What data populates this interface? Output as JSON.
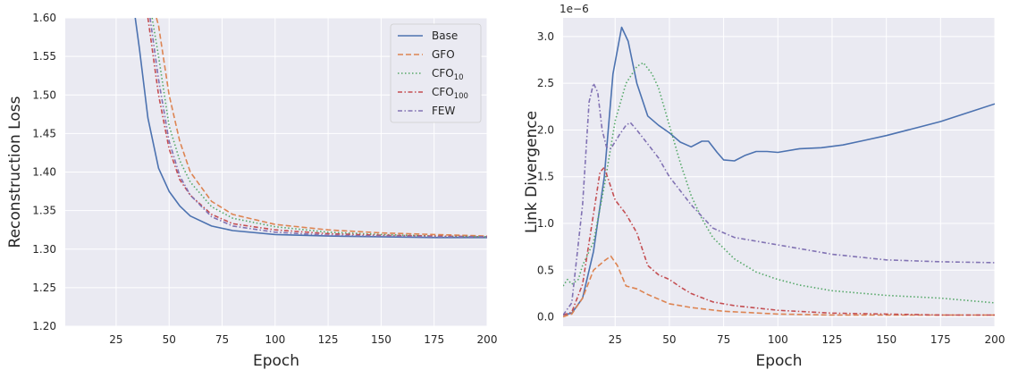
{
  "chart_data": [
    {
      "type": "line",
      "xlabel": "Epoch",
      "ylabel": "Reconstruction Loss",
      "xlim": [
        1,
        200
      ],
      "ylim": [
        1.2,
        1.6
      ],
      "xticks": [
        "25",
        "50",
        "75",
        "100",
        "125",
        "150",
        "175",
        "200"
      ],
      "yticks": [
        "1.20",
        "1.25",
        "1.30",
        "1.35",
        "1.40",
        "1.45",
        "1.50",
        "1.55",
        "1.60"
      ],
      "grid": true,
      "legend_position": "top-right",
      "series": [
        {
          "name": "Base",
          "color": "#4c72b0",
          "style": "solid",
          "x": [
            34,
            36,
            40,
            45,
            50,
            55,
            60,
            70,
            80,
            100,
            125,
            150,
            175,
            200
          ],
          "y": [
            1.6,
            1.56,
            1.47,
            1.405,
            1.375,
            1.356,
            1.343,
            1.33,
            1.324,
            1.319,
            1.317,
            1.316,
            1.315,
            1.315
          ]
        },
        {
          "name": "GFO",
          "color": "#dd8452",
          "style": "dashed",
          "x": [
            44,
            45,
            50,
            55,
            60,
            70,
            80,
            100,
            125,
            150,
            175,
            200
          ],
          "y": [
            1.6,
            1.59,
            1.5,
            1.44,
            1.4,
            1.362,
            1.345,
            1.332,
            1.325,
            1.321,
            1.319,
            1.317
          ]
        },
        {
          "name": "CFO_10",
          "color": "#55a868",
          "style": "dotted",
          "x": [
            42,
            45,
            50,
            55,
            60,
            70,
            80,
            100,
            125,
            150,
            175,
            200
          ],
          "y": [
            1.6,
            1.55,
            1.46,
            1.415,
            1.387,
            1.355,
            1.34,
            1.329,
            1.322,
            1.319,
            1.317,
            1.316
          ]
        },
        {
          "name": "CFO_100",
          "color": "#c44e52",
          "style": "dashdot",
          "x": [
            40,
            45,
            50,
            55,
            60,
            70,
            80,
            100,
            125,
            150,
            175,
            200
          ],
          "y": [
            1.6,
            1.5,
            1.43,
            1.39,
            1.37,
            1.345,
            1.333,
            1.325,
            1.32,
            1.318,
            1.317,
            1.316
          ]
        },
        {
          "name": "FEW",
          "color": "#8172b3",
          "style": "dashdot",
          "x": [
            41,
            45,
            50,
            55,
            60,
            70,
            80,
            100,
            125,
            150,
            175,
            200
          ],
          "y": [
            1.6,
            1.52,
            1.44,
            1.395,
            1.37,
            1.342,
            1.33,
            1.322,
            1.318,
            1.317,
            1.316,
            1.316
          ]
        }
      ]
    },
    {
      "type": "line",
      "xlabel": "Epoch",
      "ylabel": "Link Divergence",
      "offset_label": "1e−6",
      "xlim": [
        1,
        200
      ],
      "ylim": [
        -0.1,
        3.2
      ],
      "xticks": [
        "25",
        "50",
        "75",
        "100",
        "125",
        "150",
        "175",
        "200"
      ],
      "yticks": [
        "0.0",
        "0.5",
        "1.0",
        "1.5",
        "2.0",
        "2.5",
        "3.0"
      ],
      "grid": true,
      "series": [
        {
          "name": "Base",
          "color": "#4c72b0",
          "style": "solid",
          "x": [
            1,
            5,
            10,
            15,
            20,
            24,
            28,
            31,
            35,
            40,
            45,
            50,
            55,
            60,
            65,
            68,
            72,
            75,
            80,
            85,
            90,
            95,
            100,
            110,
            120,
            130,
            140,
            150,
            175,
            200
          ],
          "y": [
            0.02,
            0.04,
            0.2,
            0.7,
            1.5,
            2.6,
            3.1,
            2.95,
            2.5,
            2.15,
            2.05,
            1.97,
            1.87,
            1.82,
            1.88,
            1.88,
            1.76,
            1.68,
            1.67,
            1.73,
            1.77,
            1.77,
            1.76,
            1.8,
            1.81,
            1.84,
            1.89,
            1.94,
            2.09,
            2.28
          ]
        },
        {
          "name": "GFO",
          "color": "#dd8452",
          "style": "dashed",
          "x": [
            1,
            5,
            10,
            15,
            20,
            23,
            26,
            30,
            35,
            40,
            50,
            60,
            75,
            100,
            125,
            150,
            200
          ],
          "y": [
            0.0,
            0.03,
            0.2,
            0.5,
            0.6,
            0.65,
            0.55,
            0.33,
            0.3,
            0.24,
            0.14,
            0.1,
            0.06,
            0.03,
            0.02,
            0.02,
            0.02
          ]
        },
        {
          "name": "CFO_10",
          "color": "#55a868",
          "style": "dotted",
          "x": [
            1,
            3,
            5,
            8,
            10,
            15,
            20,
            25,
            30,
            35,
            38,
            42,
            45,
            50,
            55,
            60,
            65,
            70,
            80,
            90,
            100,
            110,
            125,
            150,
            175,
            200
          ],
          "y": [
            0.33,
            0.4,
            0.35,
            0.4,
            0.55,
            0.8,
            1.4,
            2.1,
            2.5,
            2.68,
            2.72,
            2.6,
            2.45,
            2.05,
            1.65,
            1.3,
            1.05,
            0.85,
            0.62,
            0.48,
            0.4,
            0.34,
            0.28,
            0.23,
            0.2,
            0.15
          ]
        },
        {
          "name": "CFO_100",
          "color": "#c44e52",
          "style": "dashdot",
          "x": [
            1,
            5,
            10,
            15,
            18,
            20,
            25,
            30,
            35,
            40,
            45,
            50,
            55,
            60,
            70,
            80,
            100,
            125,
            150,
            175,
            200
          ],
          "y": [
            0.02,
            0.05,
            0.35,
            1.1,
            1.55,
            1.6,
            1.25,
            1.1,
            0.9,
            0.55,
            0.45,
            0.4,
            0.32,
            0.25,
            0.16,
            0.12,
            0.07,
            0.04,
            0.03,
            0.02,
            0.02
          ]
        },
        {
          "name": "FEW",
          "color": "#8172b3",
          "style": "dashdot",
          "x": [
            1,
            5,
            10,
            13,
            15,
            17,
            19,
            21,
            23,
            27,
            30,
            32,
            35,
            40,
            45,
            50,
            55,
            60,
            70,
            80,
            100,
            125,
            150,
            175,
            200
          ],
          "y": [
            0.02,
            0.15,
            1.2,
            2.3,
            2.5,
            2.4,
            2.0,
            1.82,
            1.8,
            1.95,
            2.05,
            2.08,
            2.0,
            1.85,
            1.7,
            1.5,
            1.35,
            1.2,
            0.95,
            0.85,
            0.77,
            0.67,
            0.61,
            0.59,
            0.58
          ]
        }
      ]
    }
  ]
}
